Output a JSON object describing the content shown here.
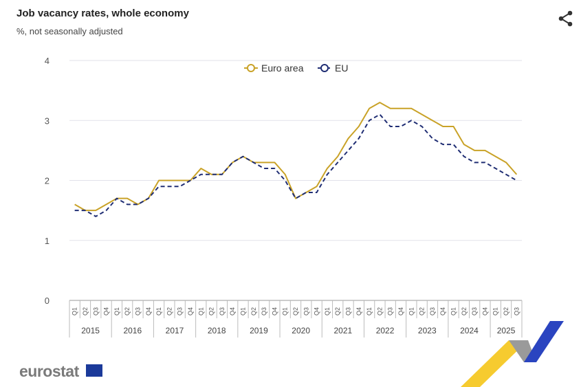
{
  "header": {
    "title": "Job vacancy rates, whole economy",
    "subtitle": "%, not seasonally adjusted"
  },
  "logo": {
    "text": "eurostat"
  },
  "colors": {
    "euro": "#c9a227",
    "eu": "#1f2d73",
    "grid": "#e2e2ea"
  },
  "chart_data": {
    "type": "line",
    "title": "Job vacancy rates, whole economy",
    "ylabel": "%",
    "ylim": [
      0,
      4
    ],
    "yticks": [
      "0",
      "1",
      "2",
      "3",
      "4"
    ],
    "years": [
      "2015",
      "2016",
      "2017",
      "2018",
      "2019",
      "2020",
      "2021",
      "2022",
      "2023",
      "2024",
      "2025"
    ],
    "quarters": [
      "Q1",
      "Q2",
      "Q3",
      "Q4"
    ],
    "n_points": 43,
    "legend": "top-center",
    "series": [
      {
        "name": "Euro area",
        "style": "solid",
        "values": [
          1.6,
          1.5,
          1.5,
          1.6,
          1.7,
          1.7,
          1.6,
          1.7,
          2.0,
          2.0,
          2.0,
          2.0,
          2.2,
          2.1,
          2.1,
          2.3,
          2.4,
          2.3,
          2.3,
          2.3,
          2.1,
          1.7,
          1.8,
          1.9,
          2.2,
          2.4,
          2.7,
          2.9,
          3.2,
          3.3,
          3.2,
          3.2,
          3.2,
          3.1,
          3.0,
          2.9,
          2.9,
          2.6,
          2.5,
          2.5,
          2.4,
          2.3,
          2.1
        ]
      },
      {
        "name": "EU",
        "style": "dashed",
        "values": [
          1.5,
          1.5,
          1.4,
          1.5,
          1.7,
          1.6,
          1.6,
          1.7,
          1.9,
          1.9,
          1.9,
          2.0,
          2.1,
          2.1,
          2.1,
          2.3,
          2.4,
          2.3,
          2.2,
          2.2,
          2.0,
          1.7,
          1.8,
          1.8,
          2.1,
          2.3,
          2.5,
          2.7,
          3.0,
          3.1,
          2.9,
          2.9,
          3.0,
          2.9,
          2.7,
          2.6,
          2.6,
          2.4,
          2.3,
          2.3,
          2.2,
          2.1,
          2.0
        ]
      }
    ]
  }
}
